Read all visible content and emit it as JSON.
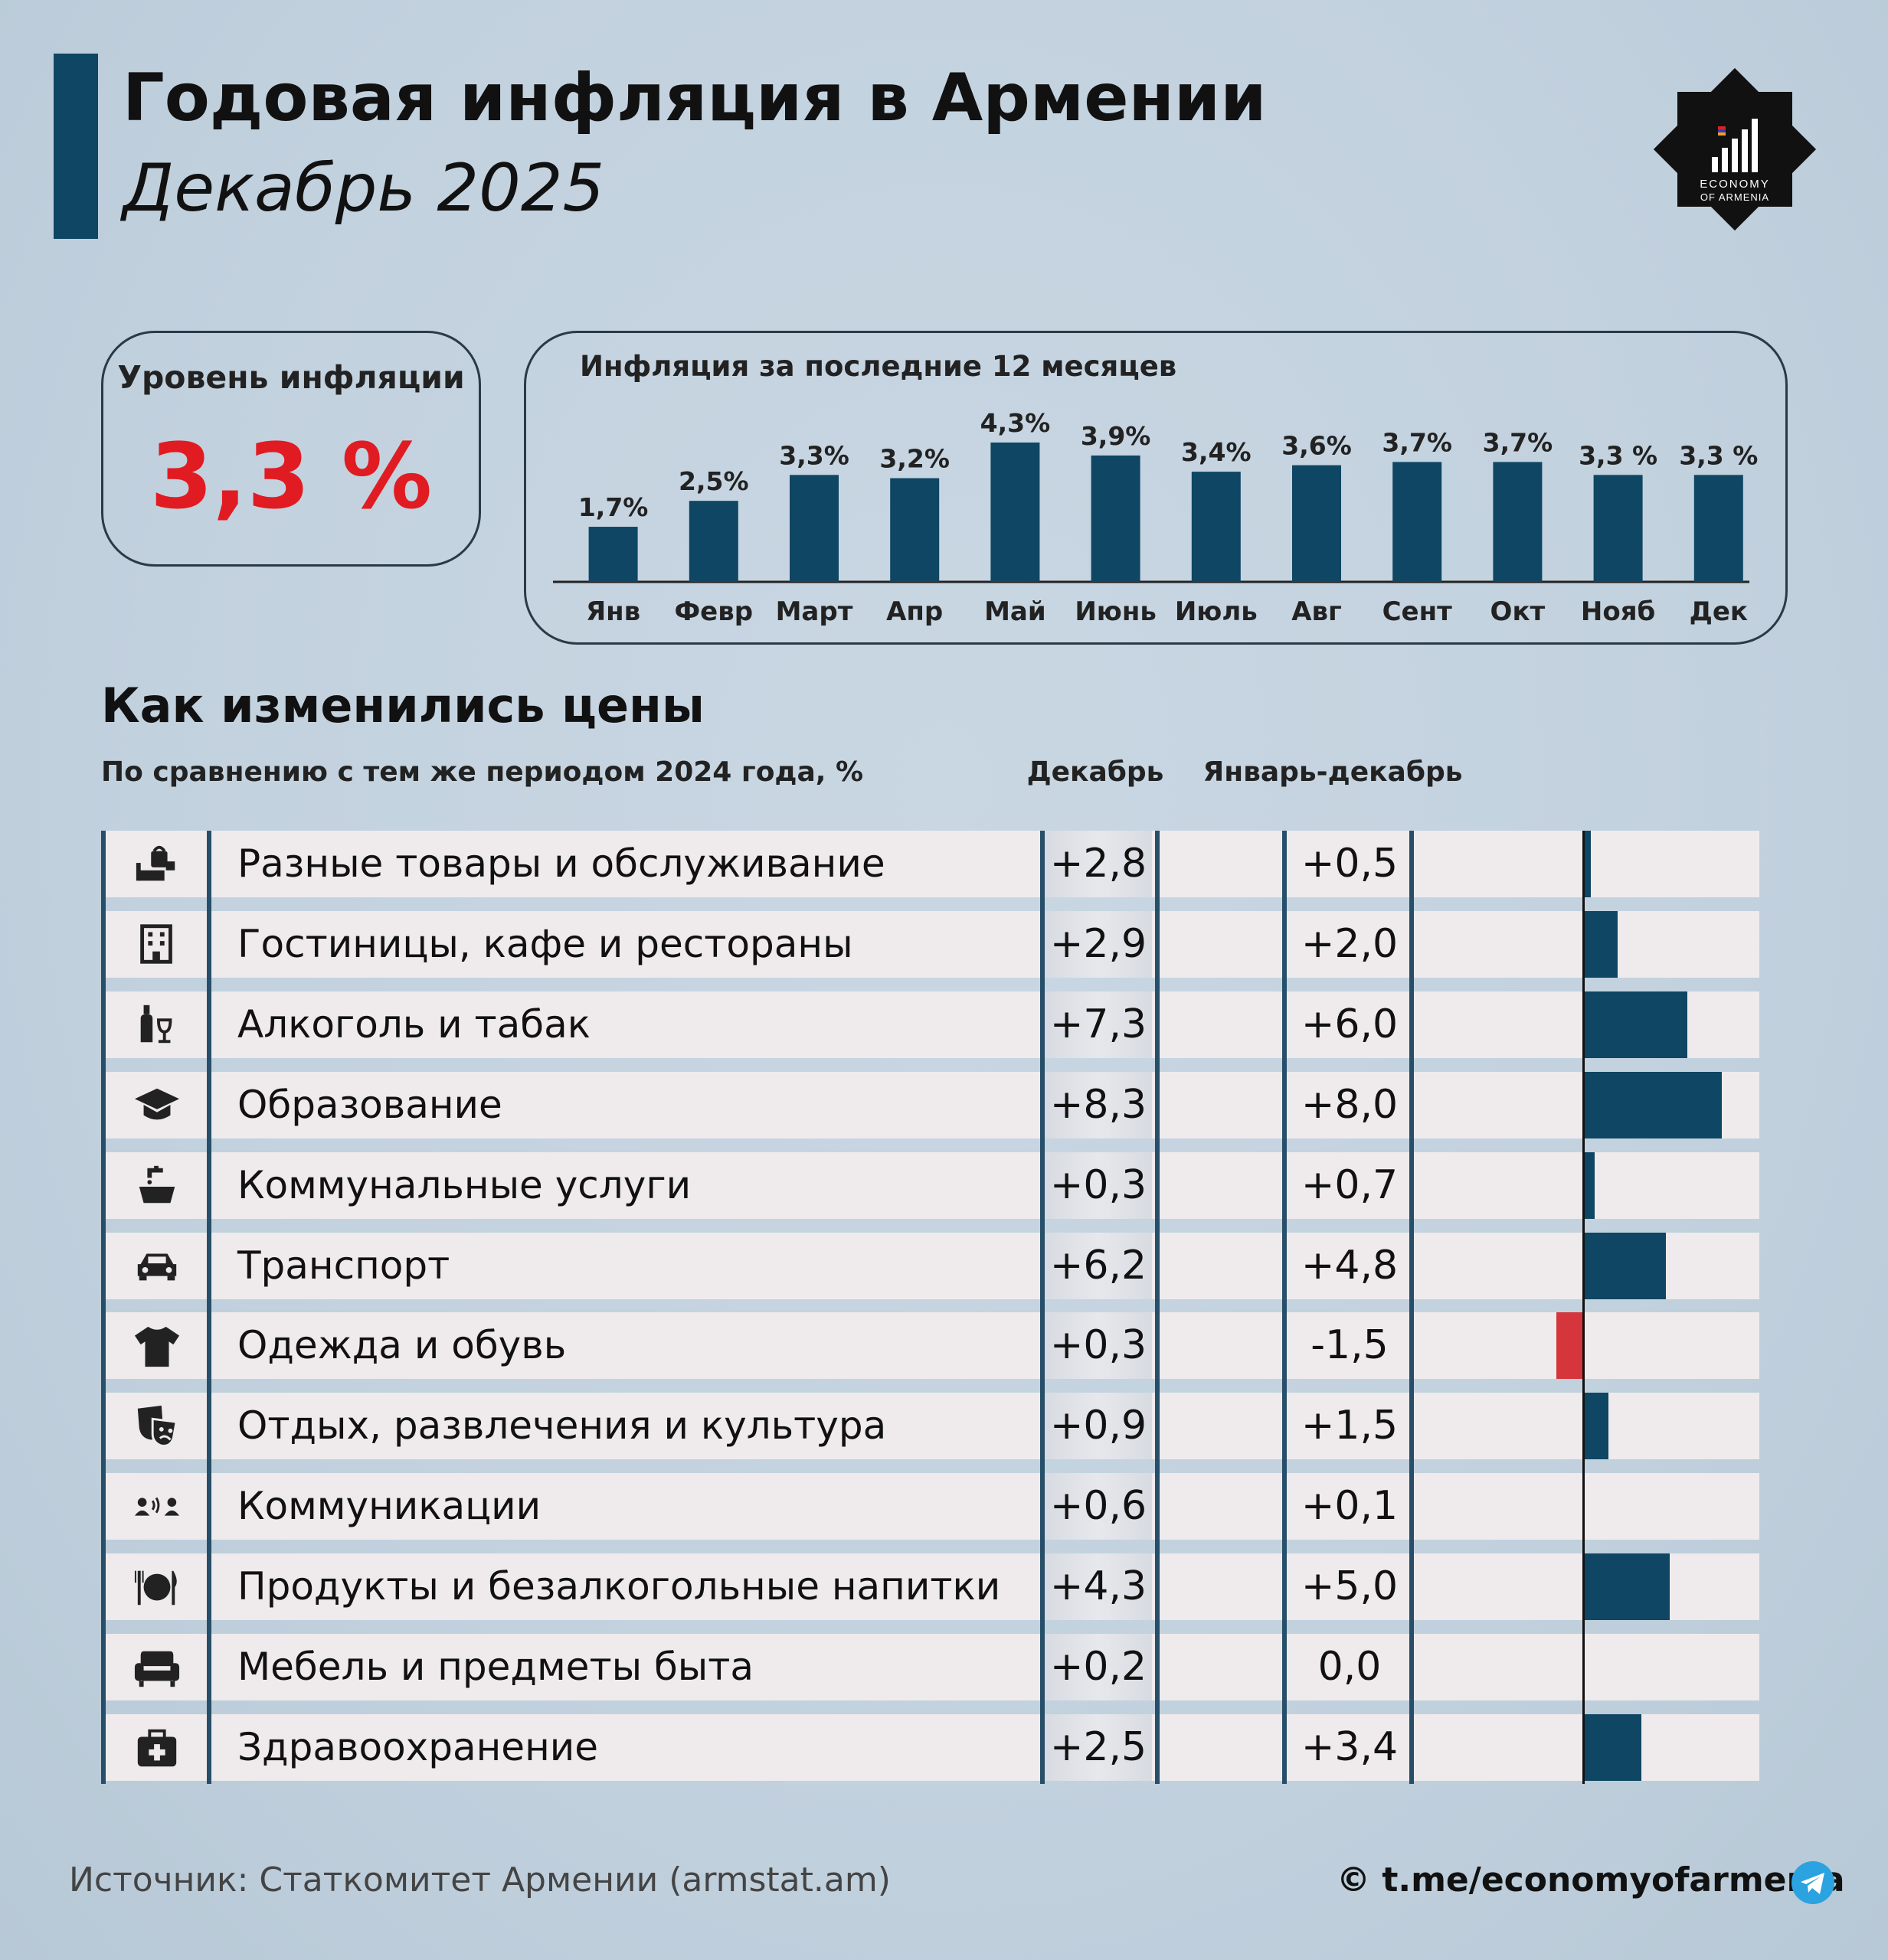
{
  "header": {
    "title": "Годовая инфляция в Армении",
    "subtitle": "Декабрь 2025"
  },
  "logo": {
    "line1": "ECONOMY",
    "line2": "OF ARMENIA",
    "icon": "economy-of-armenia-logo"
  },
  "level": {
    "label": "Уровень инфляции",
    "value": "3,3 %",
    "color": "#e11b22"
  },
  "section": {
    "title": "Как изменились цены",
    "note": "По сравнению с тем же периодом 2024 года, %",
    "col_dec": "Декабрь",
    "col_year": "Январь-декабрь"
  },
  "colors": {
    "bar": "#0e4663",
    "negative": "#d4363c",
    "accent": "#0e4663"
  },
  "chart_data": [
    {
      "type": "bar",
      "title": "Инфляция за последние 12 месяцев",
      "categories": [
        "Янв",
        "Февр",
        "Март",
        "Апр",
        "Май",
        "Июнь",
        "Июль",
        "Авг",
        "Сент",
        "Окт",
        "Нояб",
        "Дек"
      ],
      "values": [
        1.7,
        2.5,
        3.3,
        3.2,
        4.3,
        3.9,
        3.4,
        3.6,
        3.7,
        3.7,
        3.3,
        3.3
      ],
      "labels": [
        "1,7%",
        "2,5%",
        "3,3%",
        "3,2%",
        "4,3%",
        "3,9%",
        "3,4%",
        "3,6%",
        "3,7%",
        "3,7%",
        "3,3 %",
        "3,3 %"
      ],
      "ylim": [
        0,
        4.3
      ]
    },
    {
      "type": "table",
      "columns": [
        "Декабрь",
        "Январь-декабрь"
      ],
      "rows": [
        {
          "label": "Разные товары и обслуживание",
          "icon": "shopping-icon",
          "dec": "+2,8",
          "year": "+0,5",
          "year_value": 0.5
        },
        {
          "label": "Гостиницы, кафе и рестораны",
          "icon": "hotel-icon",
          "dec": "+2,9",
          "year": "+2,0",
          "year_value": 2.0
        },
        {
          "label": "Алкоголь и табак",
          "icon": "wine-icon",
          "dec": "+7,3",
          "year": "+6,0",
          "year_value": 6.0
        },
        {
          "label": "Образование",
          "icon": "graduation-cap-icon",
          "dec": "+8,3",
          "year": "+8,0",
          "year_value": 8.0
        },
        {
          "label": "Коммунальные услуги",
          "icon": "faucet-icon",
          "dec": "+0,3",
          "year": "+0,7",
          "year_value": 0.7
        },
        {
          "label": "Транспорт",
          "icon": "car-icon",
          "dec": "+6,2",
          "year": "+4,8",
          "year_value": 4.8
        },
        {
          "label": "Одежда и обувь",
          "icon": "tshirt-icon",
          "dec": "+0,3",
          "year": "-1,5",
          "year_value": -1.5
        },
        {
          "label": "Отдых, развлечения и культура",
          "icon": "theater-masks-icon",
          "dec": "+0,9",
          "year": "+1,5",
          "year_value": 1.5
        },
        {
          "label": "Коммуникации",
          "icon": "people-talking-icon",
          "dec": "+0,6",
          "year": "+0,1",
          "year_value": 0.1
        },
        {
          "label": "Продукты и безалкогольные напитки",
          "icon": "plate-cutlery-icon",
          "dec": "+4,3",
          "year": "+5,0",
          "year_value": 5.0
        },
        {
          "label": "Мебель и предметы быта",
          "icon": "armchair-icon",
          "dec": "+0,2",
          "year": "0,0",
          "year_value": 0.0
        },
        {
          "label": "Здравоохранение",
          "icon": "medical-kit-icon",
          "dec": "+2,5",
          "year": "+3,4",
          "year_value": 3.4
        }
      ]
    }
  ],
  "footer": {
    "source": "Источник: Статкомитет Армении (armstat.am)",
    "link": "© t.me/economyofarmenia",
    "icon": "telegram-icon"
  }
}
